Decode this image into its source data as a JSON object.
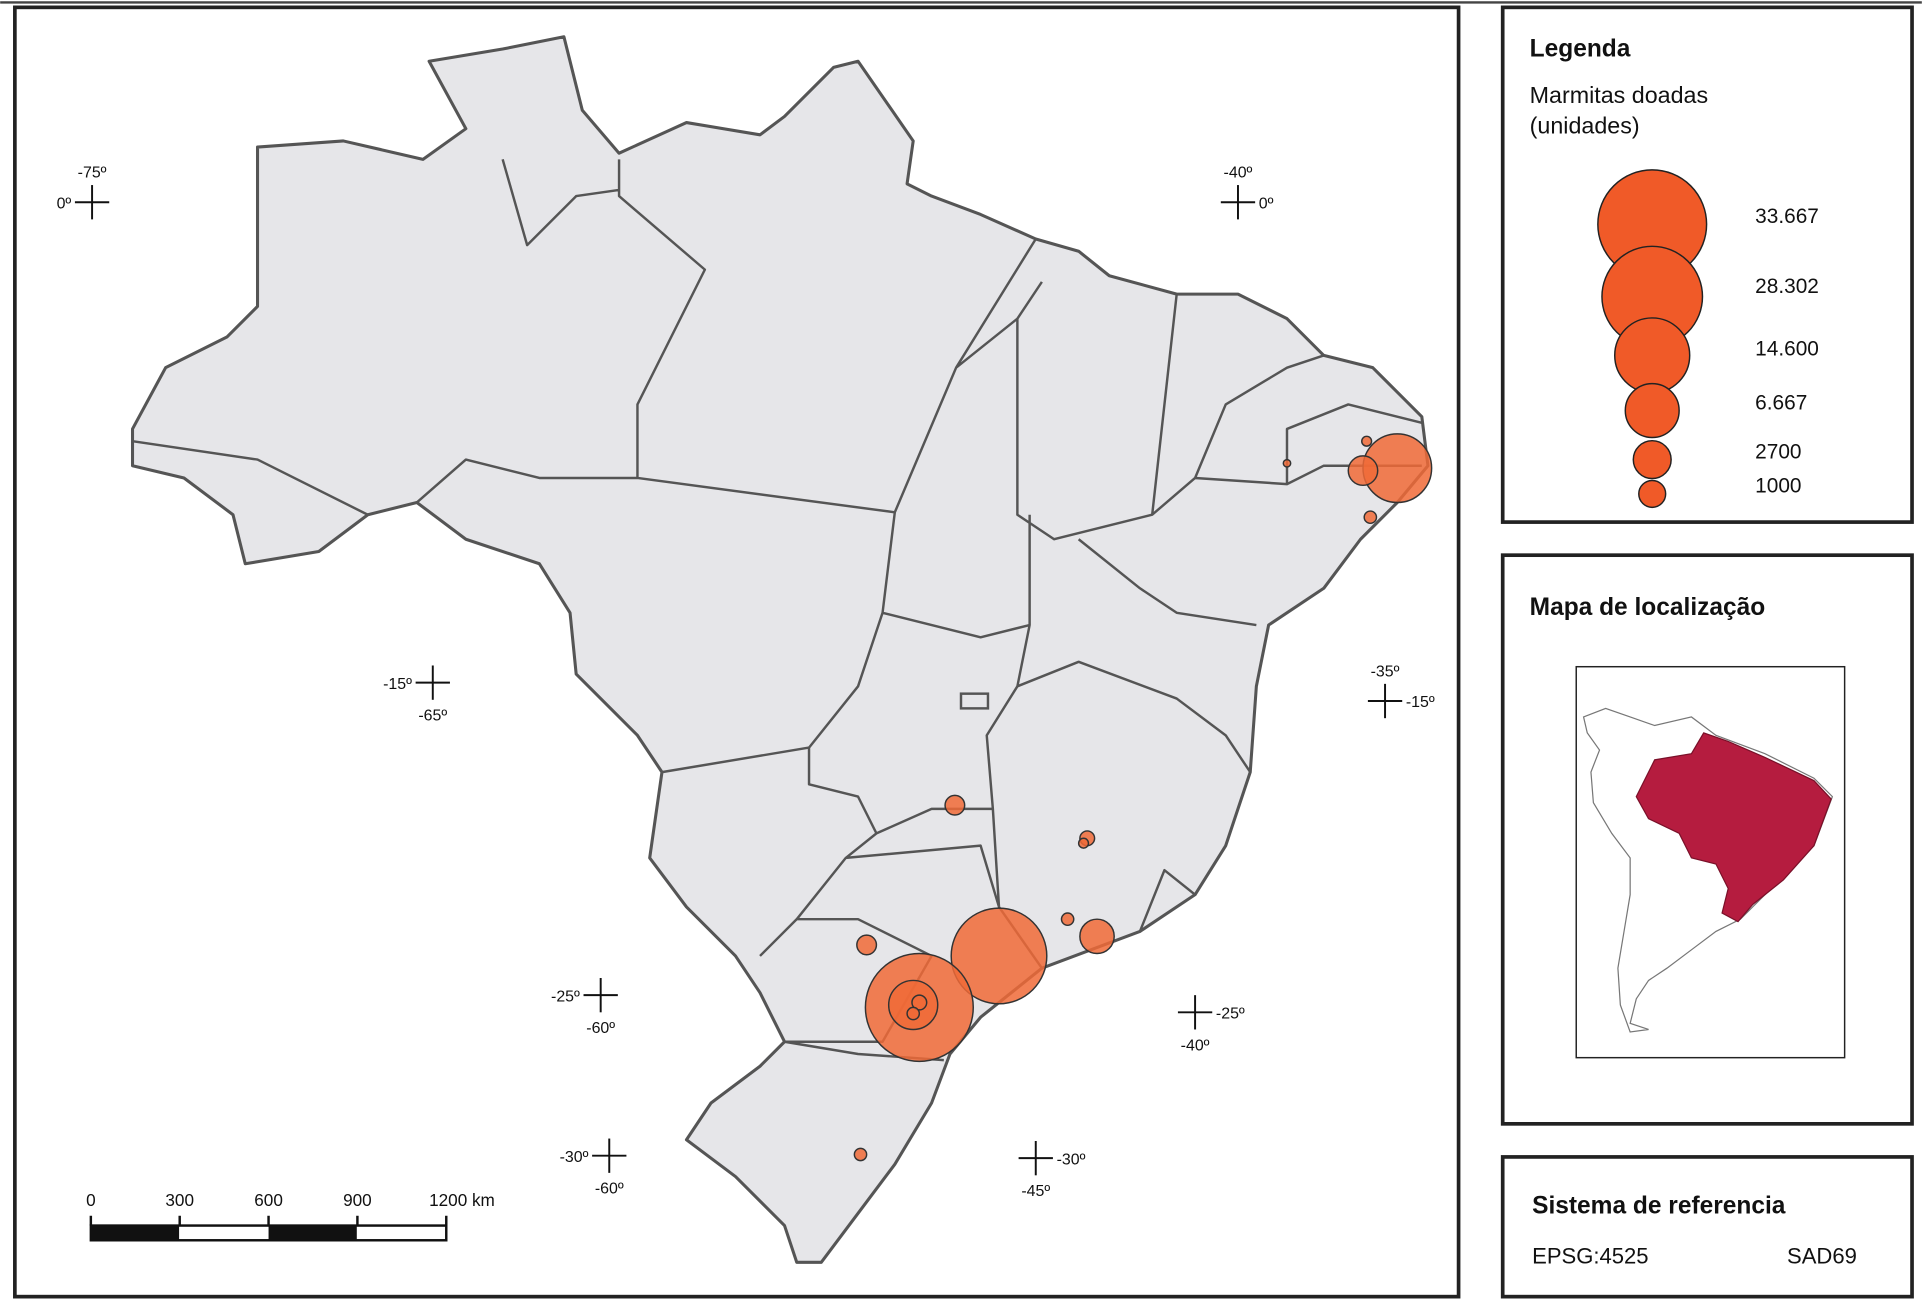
{
  "map": {
    "graticule": [
      {
        "top": "-75º",
        "side": "0º"
      },
      {
        "top": "-40º",
        "side": "0º"
      },
      {
        "side": "-15º",
        "bottom": "-65º"
      },
      {
        "top": "-35º",
        "side": "-15º"
      },
      {
        "side": "-25º",
        "bottom": "-60º"
      },
      {
        "side": "-25º",
        "bottom": "-40º"
      },
      {
        "side": "-30º",
        "bottom": "-60º"
      },
      {
        "side": "-30º",
        "bottom": "-45º"
      }
    ],
    "scale_bar": [
      "0",
      "300",
      "600",
      "900",
      "1200 km"
    ]
  },
  "legend": {
    "title": "Legenda",
    "subtitle": [
      "Marmitas doadas",
      "(unidades)"
    ],
    "items": [
      {
        "value": 33667,
        "label": "33.667"
      },
      {
        "value": 28302,
        "label": "28.302"
      },
      {
        "value": 14600,
        "label": "14.600"
      },
      {
        "value": 6667,
        "label": "6.667"
      },
      2700,
      1000
    ]
  },
  "location_map": {
    "title": "Mapa de localização"
  },
  "reference": {
    "title": "Sistema de referencia",
    "epsg": "EPSG:4525",
    "datum": "SAD69"
  }
}
